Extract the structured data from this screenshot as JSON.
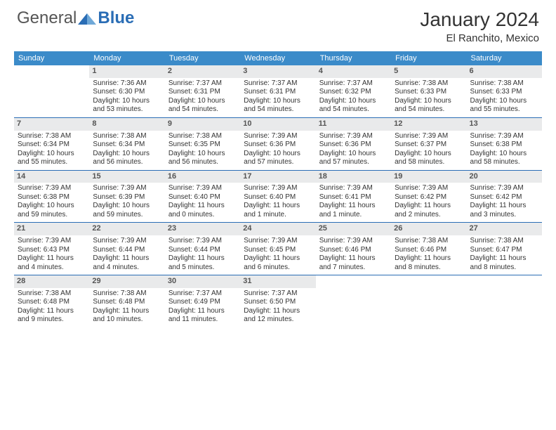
{
  "logo": {
    "text1": "General",
    "text2": "Blue"
  },
  "title": "January 2024",
  "location": "El Ranchito, Mexico",
  "colors": {
    "header_bg": "#3b8bc9",
    "header_text": "#ffffff",
    "daynum_bg": "#e9eaeb",
    "separator": "#2a6db5",
    "logo_accent": "#2a6db5",
    "text": "#333333"
  },
  "typography": {
    "title_fontsize": 28,
    "location_fontsize": 15,
    "header_fontsize": 11,
    "cell_fontsize": 10,
    "daynum_fontsize": 11
  },
  "day_headers": [
    "Sunday",
    "Monday",
    "Tuesday",
    "Wednesday",
    "Thursday",
    "Friday",
    "Saturday"
  ],
  "weeks": [
    [
      null,
      {
        "n": "1",
        "sr": "Sunrise: 7:36 AM",
        "ss": "Sunset: 6:30 PM",
        "dl": "Daylight: 10 hours and 53 minutes."
      },
      {
        "n": "2",
        "sr": "Sunrise: 7:37 AM",
        "ss": "Sunset: 6:31 PM",
        "dl": "Daylight: 10 hours and 54 minutes."
      },
      {
        "n": "3",
        "sr": "Sunrise: 7:37 AM",
        "ss": "Sunset: 6:31 PM",
        "dl": "Daylight: 10 hours and 54 minutes."
      },
      {
        "n": "4",
        "sr": "Sunrise: 7:37 AM",
        "ss": "Sunset: 6:32 PM",
        "dl": "Daylight: 10 hours and 54 minutes."
      },
      {
        "n": "5",
        "sr": "Sunrise: 7:38 AM",
        "ss": "Sunset: 6:33 PM",
        "dl": "Daylight: 10 hours and 54 minutes."
      },
      {
        "n": "6",
        "sr": "Sunrise: 7:38 AM",
        "ss": "Sunset: 6:33 PM",
        "dl": "Daylight: 10 hours and 55 minutes."
      }
    ],
    [
      {
        "n": "7",
        "sr": "Sunrise: 7:38 AM",
        "ss": "Sunset: 6:34 PM",
        "dl": "Daylight: 10 hours and 55 minutes."
      },
      {
        "n": "8",
        "sr": "Sunrise: 7:38 AM",
        "ss": "Sunset: 6:34 PM",
        "dl": "Daylight: 10 hours and 56 minutes."
      },
      {
        "n": "9",
        "sr": "Sunrise: 7:38 AM",
        "ss": "Sunset: 6:35 PM",
        "dl": "Daylight: 10 hours and 56 minutes."
      },
      {
        "n": "10",
        "sr": "Sunrise: 7:39 AM",
        "ss": "Sunset: 6:36 PM",
        "dl": "Daylight: 10 hours and 57 minutes."
      },
      {
        "n": "11",
        "sr": "Sunrise: 7:39 AM",
        "ss": "Sunset: 6:36 PM",
        "dl": "Daylight: 10 hours and 57 minutes."
      },
      {
        "n": "12",
        "sr": "Sunrise: 7:39 AM",
        "ss": "Sunset: 6:37 PM",
        "dl": "Daylight: 10 hours and 58 minutes."
      },
      {
        "n": "13",
        "sr": "Sunrise: 7:39 AM",
        "ss": "Sunset: 6:38 PM",
        "dl": "Daylight: 10 hours and 58 minutes."
      }
    ],
    [
      {
        "n": "14",
        "sr": "Sunrise: 7:39 AM",
        "ss": "Sunset: 6:38 PM",
        "dl": "Daylight: 10 hours and 59 minutes."
      },
      {
        "n": "15",
        "sr": "Sunrise: 7:39 AM",
        "ss": "Sunset: 6:39 PM",
        "dl": "Daylight: 10 hours and 59 minutes."
      },
      {
        "n": "16",
        "sr": "Sunrise: 7:39 AM",
        "ss": "Sunset: 6:40 PM",
        "dl": "Daylight: 11 hours and 0 minutes."
      },
      {
        "n": "17",
        "sr": "Sunrise: 7:39 AM",
        "ss": "Sunset: 6:40 PM",
        "dl": "Daylight: 11 hours and 1 minute."
      },
      {
        "n": "18",
        "sr": "Sunrise: 7:39 AM",
        "ss": "Sunset: 6:41 PM",
        "dl": "Daylight: 11 hours and 1 minute."
      },
      {
        "n": "19",
        "sr": "Sunrise: 7:39 AM",
        "ss": "Sunset: 6:42 PM",
        "dl": "Daylight: 11 hours and 2 minutes."
      },
      {
        "n": "20",
        "sr": "Sunrise: 7:39 AM",
        "ss": "Sunset: 6:42 PM",
        "dl": "Daylight: 11 hours and 3 minutes."
      }
    ],
    [
      {
        "n": "21",
        "sr": "Sunrise: 7:39 AM",
        "ss": "Sunset: 6:43 PM",
        "dl": "Daylight: 11 hours and 4 minutes."
      },
      {
        "n": "22",
        "sr": "Sunrise: 7:39 AM",
        "ss": "Sunset: 6:44 PM",
        "dl": "Daylight: 11 hours and 4 minutes."
      },
      {
        "n": "23",
        "sr": "Sunrise: 7:39 AM",
        "ss": "Sunset: 6:44 PM",
        "dl": "Daylight: 11 hours and 5 minutes."
      },
      {
        "n": "24",
        "sr": "Sunrise: 7:39 AM",
        "ss": "Sunset: 6:45 PM",
        "dl": "Daylight: 11 hours and 6 minutes."
      },
      {
        "n": "25",
        "sr": "Sunrise: 7:39 AM",
        "ss": "Sunset: 6:46 PM",
        "dl": "Daylight: 11 hours and 7 minutes."
      },
      {
        "n": "26",
        "sr": "Sunrise: 7:38 AM",
        "ss": "Sunset: 6:46 PM",
        "dl": "Daylight: 11 hours and 8 minutes."
      },
      {
        "n": "27",
        "sr": "Sunrise: 7:38 AM",
        "ss": "Sunset: 6:47 PM",
        "dl": "Daylight: 11 hours and 8 minutes."
      }
    ],
    [
      {
        "n": "28",
        "sr": "Sunrise: 7:38 AM",
        "ss": "Sunset: 6:48 PM",
        "dl": "Daylight: 11 hours and 9 minutes."
      },
      {
        "n": "29",
        "sr": "Sunrise: 7:38 AM",
        "ss": "Sunset: 6:48 PM",
        "dl": "Daylight: 11 hours and 10 minutes."
      },
      {
        "n": "30",
        "sr": "Sunrise: 7:37 AM",
        "ss": "Sunset: 6:49 PM",
        "dl": "Daylight: 11 hours and 11 minutes."
      },
      {
        "n": "31",
        "sr": "Sunrise: 7:37 AM",
        "ss": "Sunset: 6:50 PM",
        "dl": "Daylight: 11 hours and 12 minutes."
      },
      null,
      null,
      null
    ]
  ]
}
